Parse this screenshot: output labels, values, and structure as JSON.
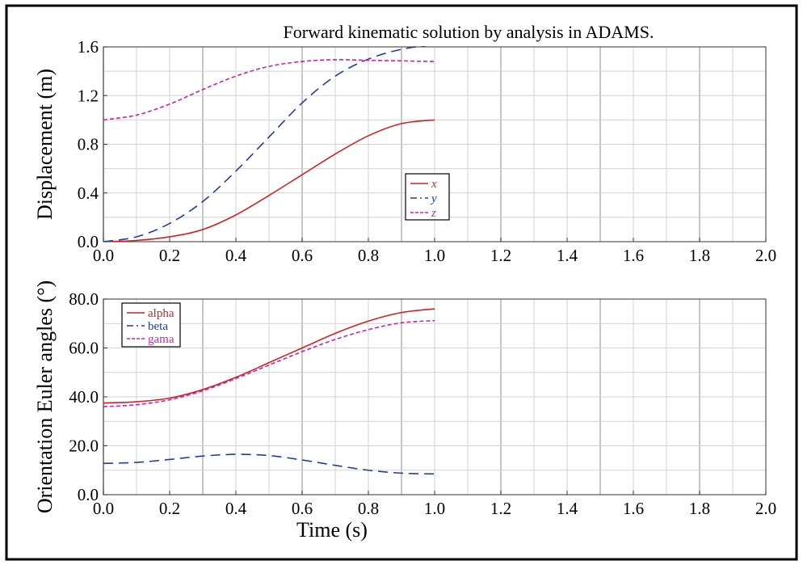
{
  "chart_data": [
    {
      "type": "line",
      "title": "Forward kinematic solution by analysis in ADAMS.",
      "xlabel": "",
      "ylabel": "Displacement (m)",
      "xlim": [
        0.0,
        2.0
      ],
      "ylim": [
        0.0,
        1.6
      ],
      "xticks": [
        "0.0",
        "0.2",
        "0.4",
        "0.6",
        "0.8",
        "1.0",
        "1.2",
        "1.4",
        "1.6",
        "1.8",
        "2.0"
      ],
      "yticks": [
        "0.0",
        "0.4",
        "0.8",
        "1.2",
        "1.6"
      ],
      "grid": true,
      "legend": "center",
      "series": [
        {
          "name": "x",
          "color": "#d42020",
          "dash": "solid",
          "x": [
            0,
            0.1,
            0.2,
            0.3,
            0.4,
            0.5,
            0.6,
            0.7,
            0.8,
            0.9,
            1.0
          ],
          "y": [
            0.0,
            0.01,
            0.04,
            0.1,
            0.22,
            0.38,
            0.55,
            0.72,
            0.87,
            0.97,
            1.0
          ]
        },
        {
          "name": "y",
          "color": "#1e3fa0",
          "dash": "long",
          "x": [
            0,
            0.1,
            0.2,
            0.3,
            0.4,
            0.5,
            0.6,
            0.7,
            0.8,
            0.9,
            1.0
          ],
          "y": [
            0.0,
            0.04,
            0.15,
            0.33,
            0.58,
            0.86,
            1.14,
            1.36,
            1.5,
            1.58,
            1.62
          ]
        },
        {
          "name": "z",
          "color": "#cc1fb4",
          "dash": "short",
          "x": [
            0,
            0.1,
            0.2,
            0.3,
            0.4,
            0.5,
            0.6,
            0.7,
            0.8,
            0.9,
            1.0
          ],
          "y": [
            1.0,
            1.04,
            1.13,
            1.25,
            1.36,
            1.44,
            1.48,
            1.495,
            1.49,
            1.485,
            1.48
          ]
        }
      ]
    },
    {
      "type": "line",
      "title": "",
      "xlabel": "Time (s)",
      "ylabel": "Orientation Euler angles (°)",
      "xlim": [
        0.0,
        2.0
      ],
      "ylim": [
        0.0,
        80.0
      ],
      "xticks": [
        "0.0",
        "0.2",
        "0.4",
        "0.6",
        "0.8",
        "1.0",
        "1.2",
        "1.4",
        "1.6",
        "1.8",
        "2.0"
      ],
      "yticks": [
        "0.0",
        "20.0",
        "40.0",
        "60.0",
        "80.0"
      ],
      "grid": true,
      "legend": "top-left",
      "series": [
        {
          "name": "alpha",
          "color": "#d42020",
          "dash": "solid",
          "x": [
            0,
            0.1,
            0.2,
            0.3,
            0.4,
            0.5,
            0.6,
            0.7,
            0.8,
            0.9,
            1.0
          ],
          "y": [
            37.5,
            38.0,
            39.5,
            43.0,
            48.0,
            54.0,
            60.0,
            66.0,
            71.0,
            74.5,
            76.0
          ]
        },
        {
          "name": "beta",
          "color": "#1e3fa0",
          "dash": "long",
          "x": [
            0,
            0.1,
            0.2,
            0.3,
            0.4,
            0.5,
            0.6,
            0.7,
            0.8,
            0.9,
            1.0
          ],
          "y": [
            12.8,
            13.2,
            14.4,
            15.8,
            16.5,
            16.0,
            14.2,
            12.0,
            10.0,
            8.8,
            8.5
          ]
        },
        {
          "name": "gama",
          "color": "#cc1fb4",
          "dash": "short",
          "x": [
            0,
            0.1,
            0.2,
            0.3,
            0.4,
            0.5,
            0.6,
            0.7,
            0.8,
            0.9,
            1.0
          ],
          "y": [
            36.0,
            36.8,
            38.8,
            42.5,
            47.5,
            53.0,
            58.5,
            63.5,
            67.5,
            70.3,
            71.2
          ]
        }
      ]
    }
  ]
}
